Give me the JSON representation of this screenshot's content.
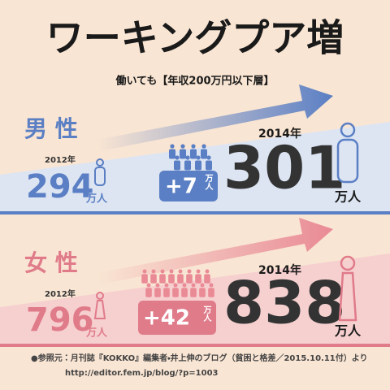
{
  "title": "ワーキングプア増",
  "subtitle": "働いても【年収200万円以下層】",
  "sections": [
    {
      "label": "男 性",
      "year_before": "2012年",
      "value_before": 294,
      "unit": "万人",
      "increase": "+7",
      "year_after": "2014年",
      "value_after": 301
    },
    {
      "label": "女 性",
      "year_before": "2012年",
      "value_before": 796,
      "unit": "万人",
      "increase": "+42",
      "year_after": "2014年",
      "value_after": 838
    }
  ],
  "source": "●参照元：月刊誌『KOKKO』編集者・井上伸のブログ（貧困と格差／2015.10.11付）より",
  "url": "http://editor.fem.jp/blog/?p=1003"
}
